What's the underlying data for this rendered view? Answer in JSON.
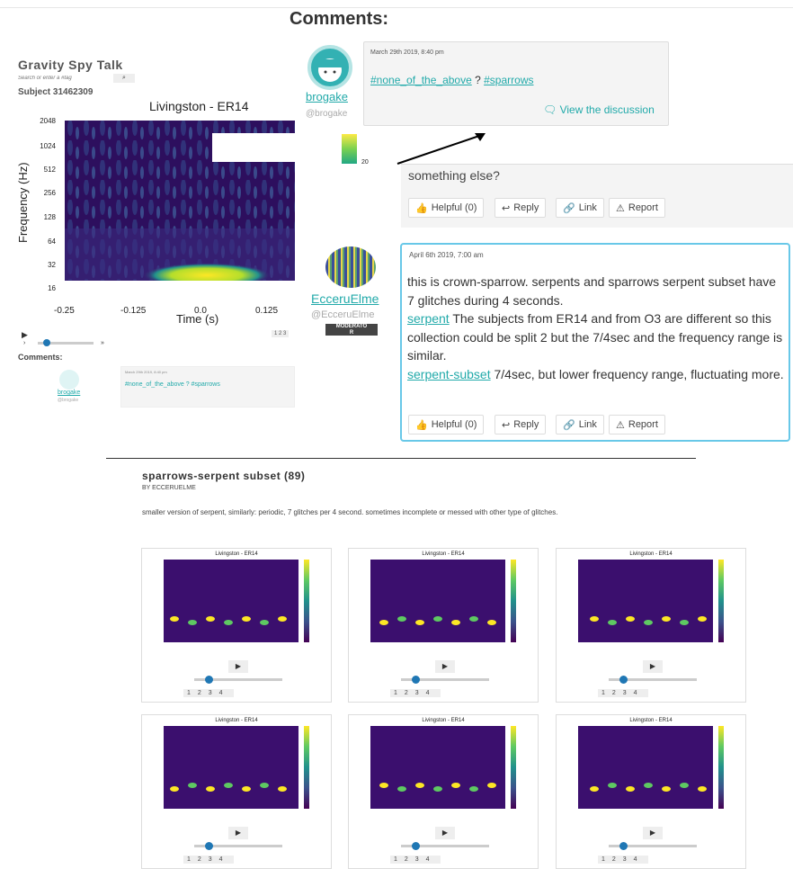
{
  "page": {
    "comments_title": "Comments:"
  },
  "left_panel": {
    "app_title": "Gravity Spy Talk",
    "search_placeholder": "Search or enter a #tag",
    "subject": "Subject 31462309",
    "spectrogram": {
      "title": "Livingston - ER14",
      "ylabel": "Frequency (Hz)",
      "xlabel": "Time (s)",
      "yticks": [
        "2048",
        "1024",
        "512",
        "256",
        "128",
        "64",
        "32",
        "16"
      ],
      "xticks": [
        "-0.25",
        "-0.125",
        "0.0",
        "0.125"
      ],
      "colorbar_tick": "20"
    },
    "pager": "1 2 3",
    "comments_label": "Comments:",
    "mini_comment": {
      "name": "brogake",
      "handle": "@brogake",
      "date": "March 29th 2019, 8:40 pm",
      "tags": "#none_of_the_above ? #sparrows"
    }
  },
  "comment1": {
    "username": "brogake",
    "handle": "@brogake",
    "date": "March 29th 2019, 8:40 pm",
    "tag1": "#none_of_the_above",
    "sep": " ? ",
    "tag2": "#sparrows",
    "view_link": "View the discussion"
  },
  "comment2": {
    "text": "something else?",
    "helpful": "Helpful (0)",
    "reply": "Reply",
    "link": "Link",
    "report": "Report"
  },
  "comment3": {
    "username": "EcceruElme",
    "handle": "@EcceruElme",
    "badge_top": "MODERATO",
    "badge_bottom": "R",
    "date": "April 6th 2019, 7:00 am",
    "line1": "this is crown-sparrow. serpents and sparrows serpent subset have 7 glitches during 4 seconds.",
    "link1": "serpent",
    "line2": " The subjects from ER14 and from O3 are different so this collection could be split 2 but the 7/4sec and the frequency range is similar.",
    "link2": "serpent-subset",
    "line3": " 7/4sec, but lower frequency range, fluctuating more.",
    "helpful": "Helpful (0)",
    "reply": "Reply",
    "link": "Link",
    "report": "Report"
  },
  "collection": {
    "title": "sparrows-serpent subset (89)",
    "by": "BY ECCERUELME",
    "description": "smaller version of serpent, similarly: periodic, 7 glitches per 4 second. sometimes incomplete or messed with other type of glitches.",
    "thumbs": [
      {
        "title": "Livingston - ER14",
        "pager": "1234"
      },
      {
        "title": "Livingston - ER14",
        "pager": "1234"
      },
      {
        "title": "Livingston - ER14",
        "pager": "1234"
      },
      {
        "title": "Livingston - ER14",
        "pager": "1234"
      },
      {
        "title": "Livingston - ER14",
        "pager": "1234"
      },
      {
        "title": "Livingston - ER14",
        "pager": "1234"
      }
    ]
  },
  "colors": {
    "teal": "#2aa8aa",
    "highlight_border": "#68c8e8",
    "plot_bg": "#3b0f6e"
  }
}
